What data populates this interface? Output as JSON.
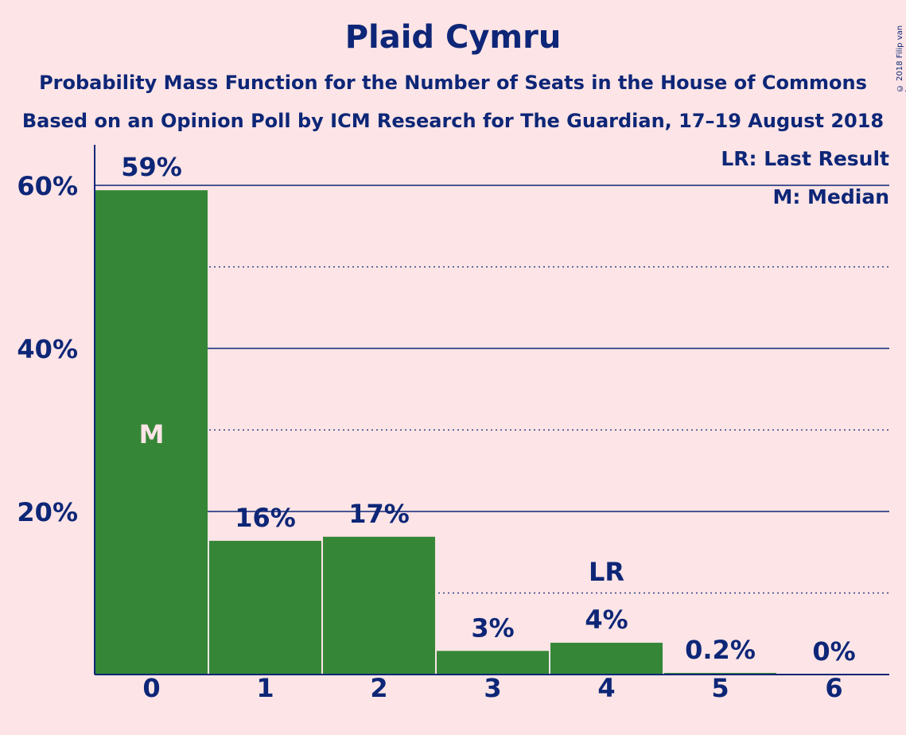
{
  "chart_data": {
    "type": "bar",
    "title": "Plaid Cymru",
    "subtitle": "Probability Mass Function for the Number of Seats in the House of Commons",
    "subtitle2": "Based on an Opinion Poll by ICM Research for The Guardian, 17–19 August 2018",
    "copyright": "© 2018 Filip van Laenen",
    "categories": [
      "0",
      "1",
      "2",
      "3",
      "4",
      "5",
      "6"
    ],
    "values": [
      59.4,
      16.4,
      16.9,
      2.9,
      3.9,
      0.2,
      0
    ],
    "value_labels": [
      "59%",
      "16%",
      "17%",
      "3%",
      "4%",
      "0.2%",
      "0%"
    ],
    "y_ticks": [
      {
        "value": 20,
        "label": "20%"
      },
      {
        "value": 40,
        "label": "40%"
      },
      {
        "value": 60,
        "label": "60%"
      }
    ],
    "ylim": [
      0,
      65
    ],
    "grid": "solid at 20% steps, dotted at 10% steps",
    "median_category": "0",
    "median_marker": "M",
    "last_result_category": "4",
    "last_result_marker": "LR",
    "legend": {
      "last_result": "LR: Last Result",
      "median": "M: Median",
      "placement": "top-right"
    },
    "colors": {
      "background": "#fde4e6",
      "bar": "#358737",
      "text": "#0d2677",
      "median_marker": "#fde4e6"
    }
  }
}
